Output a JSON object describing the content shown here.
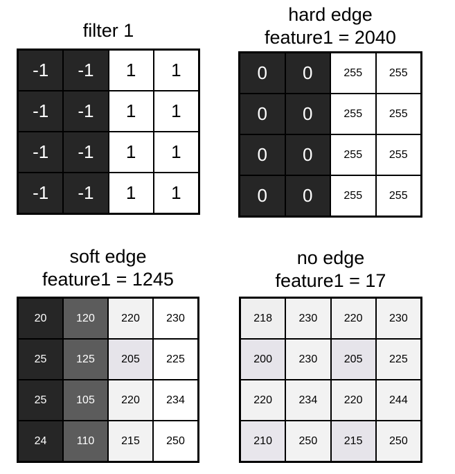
{
  "panels": [
    {
      "id": "filter",
      "title_lines": [
        "filter 1"
      ],
      "values": [
        [
          "-1",
          "-1",
          "1",
          "1"
        ],
        [
          "-1",
          "-1",
          "1",
          "1"
        ],
        [
          "-1",
          "-1",
          "1",
          "1"
        ],
        [
          "-1",
          "-1",
          "1",
          "1"
        ]
      ],
      "shades": [
        [
          "#262626",
          "#262626",
          "#ffffff",
          "#ffffff"
        ],
        [
          "#262626",
          "#262626",
          "#ffffff",
          "#ffffff"
        ],
        [
          "#262626",
          "#262626",
          "#ffffff",
          "#ffffff"
        ],
        [
          "#262626",
          "#262626",
          "#ffffff",
          "#ffffff"
        ]
      ]
    },
    {
      "id": "hard-edge",
      "title_lines": [
        "hard edge",
        "feature1 = 2040"
      ],
      "values": [
        [
          "0",
          "0",
          "255",
          "255"
        ],
        [
          "0",
          "0",
          "255",
          "255"
        ],
        [
          "0",
          "0",
          "255",
          "255"
        ],
        [
          "0",
          "0",
          "255",
          "255"
        ]
      ],
      "shades": [
        [
          "#262626",
          "#262626",
          "#ffffff",
          "#ffffff"
        ],
        [
          "#262626",
          "#262626",
          "#ffffff",
          "#ffffff"
        ],
        [
          "#262626",
          "#262626",
          "#ffffff",
          "#ffffff"
        ],
        [
          "#262626",
          "#262626",
          "#ffffff",
          "#ffffff"
        ]
      ]
    },
    {
      "id": "soft-edge",
      "title_lines": [
        "soft edge",
        "feature1 = 1245"
      ],
      "values": [
        [
          "20",
          "120",
          "220",
          "230"
        ],
        [
          "25",
          "125",
          "205",
          "225"
        ],
        [
          "25",
          "105",
          "220",
          "234"
        ],
        [
          "24",
          "110",
          "215",
          "250"
        ]
      ],
      "shades": [
        [
          "#262626",
          "#5c5c5c",
          "#f2f2f2",
          "#ffffff"
        ],
        [
          "#262626",
          "#5c5c5c",
          "#e6e4ea",
          "#ffffff"
        ],
        [
          "#262626",
          "#5c5c5c",
          "#f2f2f2",
          "#ffffff"
        ],
        [
          "#262626",
          "#5c5c5c",
          "#f2f2f2",
          "#ffffff"
        ]
      ]
    },
    {
      "id": "no-edge",
      "title_lines": [
        "no edge",
        "feature1 = 17"
      ],
      "values": [
        [
          "218",
          "230",
          "220",
          "230"
        ],
        [
          "200",
          "230",
          "205",
          "225"
        ],
        [
          "220",
          "234",
          "220",
          "244"
        ],
        [
          "210",
          "250",
          "215",
          "250"
        ]
      ],
      "shades": [
        [
          "#efefef",
          "#f2f2f2",
          "#f2f2f2",
          "#f2f2f2"
        ],
        [
          "#e6e4ea",
          "#f2f2f2",
          "#e6e4ea",
          "#f2f2f2"
        ],
        [
          "#f2f2f2",
          "#f2f2f2",
          "#f2f2f2",
          "#f2f2f2"
        ],
        [
          "#e8e6ec",
          "#f2f2f2",
          "#e6e4ea",
          "#f2f2f2"
        ]
      ]
    }
  ]
}
